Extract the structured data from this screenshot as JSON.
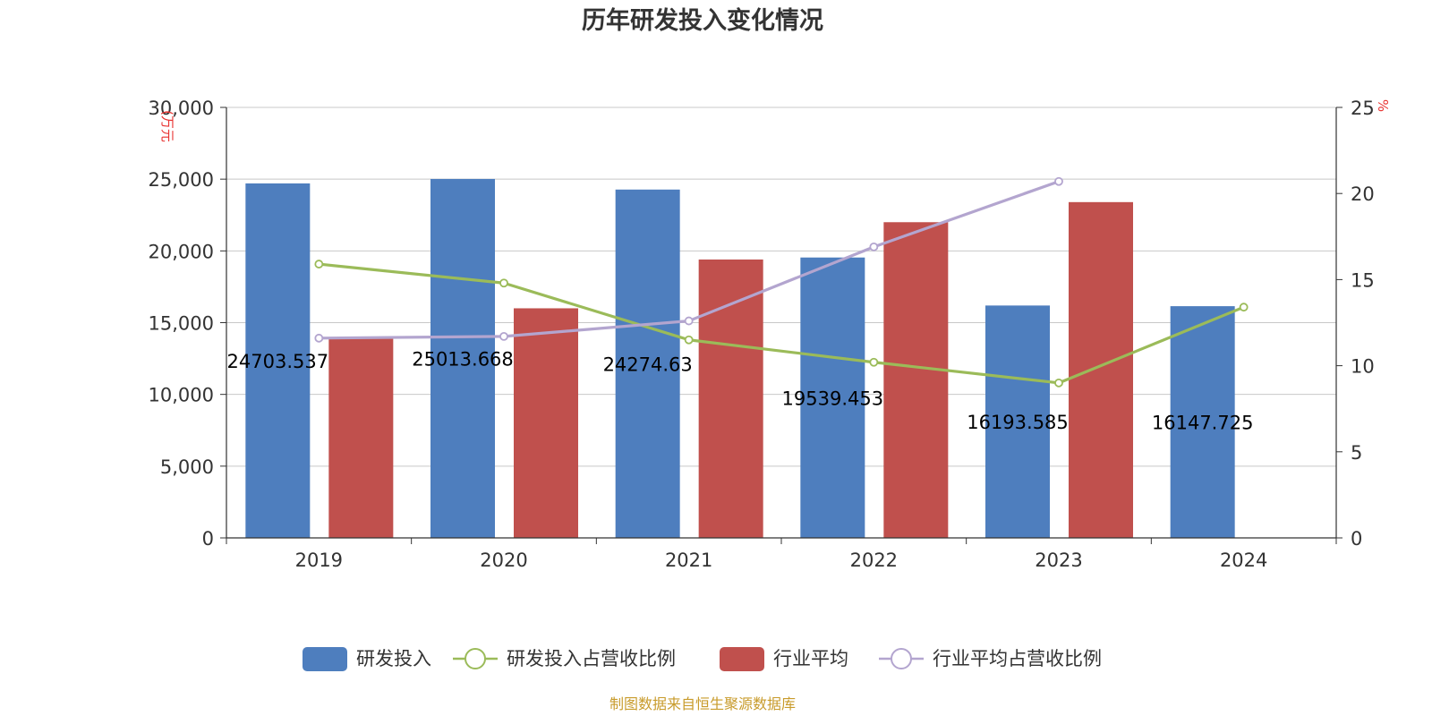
{
  "chart_data": {
    "type": "bar",
    "title": "历年研发投入变化情况",
    "categories": [
      "2019",
      "2020",
      "2021",
      "2022",
      "2023",
      "2024"
    ],
    "left_axis": {
      "unit": "(万元",
      "ylim": [
        0,
        30000
      ],
      "ticks": [
        "0",
        "5,000",
        "10,000",
        "15,000",
        "20,000",
        "25,000",
        "30,000"
      ],
      "tick_values": [
        0,
        5000,
        10000,
        15000,
        20000,
        25000,
        30000
      ]
    },
    "right_axis": {
      "unit": "%",
      "ylim": [
        0,
        25
      ],
      "ticks": [
        "0",
        "5",
        "10",
        "15",
        "20",
        "25"
      ],
      "tick_values": [
        0,
        5,
        10,
        15,
        20,
        25
      ]
    },
    "series": [
      {
        "name": "研发投入",
        "kind": "bar",
        "axis": "left",
        "color": "#4e7ebe",
        "values": [
          24703.537,
          25013.668,
          24274.63,
          19539.453,
          16193.585,
          16147.725
        ],
        "labels": [
          "24703.537",
          "25013.668",
          "24274.63",
          "19539.453",
          "16193.585",
          "16147.725"
        ]
      },
      {
        "name": "研发投入占营收比例",
        "kind": "line",
        "axis": "right",
        "color": "#9bbb59",
        "values": [
          15.9,
          14.8,
          11.5,
          10.2,
          9.0,
          13.4
        ]
      },
      {
        "name": "行业平均",
        "kind": "bar",
        "axis": "left",
        "color": "#c0504d",
        "values": [
          14000,
          16000,
          19400,
          22000,
          23400,
          null
        ]
      },
      {
        "name": "行业平均占营收比例",
        "kind": "line",
        "axis": "right",
        "color": "#b3a5cf",
        "values": [
          11.6,
          11.7,
          12.6,
          16.9,
          20.7,
          null
        ]
      }
    ],
    "grid": true,
    "legend_position": "bottom"
  },
  "source": "制图数据来自恒生聚源数据库"
}
